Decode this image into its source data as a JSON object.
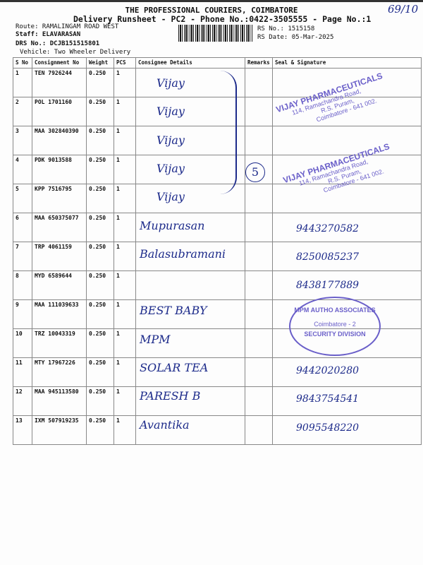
{
  "header": {
    "title": "THE PROFESSIONAL COURIERS, COIMBATORE",
    "subtitle": "Delivery Runsheet - PC2 - Phone No.:0422-3505555 - Page No.:1",
    "route": "Route: RAMALINGAM ROAD WEST",
    "staff": "Staff: ELAVARASAN",
    "drs": "DRS No.: DCJB151515801",
    "vehicle": "Vehicle: Two Wheeler Delivery",
    "rs_no": "RS No.: 1515158",
    "rs_date": "RS Date: 05-Mar-2025",
    "handwritten_note": "69/10"
  },
  "table": {
    "columns": [
      "S No",
      "Consignment No",
      "Weight",
      "PCS",
      "Consignee Details",
      "Remarks",
      "Seal & Signature"
    ],
    "rows": [
      {
        "sno": "1",
        "cn": "TEN 7926244",
        "weight": "0.250",
        "pcs": "1",
        "consignee": "Vijay",
        "sign": ""
      },
      {
        "sno": "2",
        "cn": "POL 1701160",
        "weight": "0.250",
        "pcs": "1",
        "consignee": "Vijay",
        "sign": ""
      },
      {
        "sno": "3",
        "cn": "MAA 302840390",
        "weight": "0.250",
        "pcs": "1",
        "consignee": "Vijay",
        "sign": ""
      },
      {
        "sno": "4",
        "cn": "PDK 9013588",
        "weight": "0.250",
        "pcs": "1",
        "consignee": "Vijay",
        "sign": ""
      },
      {
        "sno": "5",
        "cn": "KPP 7516795",
        "weight": "0.250",
        "pcs": "1",
        "consignee": "Vijay",
        "sign": ""
      },
      {
        "sno": "6",
        "cn": "MAA 650375077",
        "weight": "0.250",
        "pcs": "1",
        "consignee": "Mupurasan",
        "sign": "9443270582"
      },
      {
        "sno": "7",
        "cn": "TRP 4061159",
        "weight": "0.250",
        "pcs": "1",
        "consignee": "Balasubramani",
        "sign": "8250085237"
      },
      {
        "sno": "8",
        "cn": "MYD 6589644",
        "weight": "0.250",
        "pcs": "1",
        "consignee": "",
        "sign": "8438177889"
      },
      {
        "sno": "9",
        "cn": "MAA 111039633",
        "weight": "0.250",
        "pcs": "1",
        "consignee": "BEST BABY",
        "sign": ""
      },
      {
        "sno": "10",
        "cn": "TRZ 10043319",
        "weight": "0.250",
        "pcs": "1",
        "consignee": "MPM",
        "sign": ""
      },
      {
        "sno": "11",
        "cn": "MTY 17967226",
        "weight": "0.250",
        "pcs": "1",
        "consignee": "SOLAR TEA",
        "sign": "9442020280"
      },
      {
        "sno": "12",
        "cn": "MAA 945113580",
        "weight": "0.250",
        "pcs": "1",
        "consignee": "PARESH B",
        "sign": "9843754541"
      },
      {
        "sno": "13",
        "cn": "IXM 507919235",
        "weight": "0.250",
        "pcs": "1",
        "consignee": "Avantika",
        "sign": "9095548220"
      }
    ]
  },
  "annotations": {
    "bracket_count": "5"
  },
  "stamps": {
    "pharma_name": "VIJAY PHARMACEUTICALS",
    "pharma_addr1": "114, Ramachandra Road,",
    "pharma_addr2": "R.S. Puram,",
    "pharma_addr3": "Coimbatore - 641 002.",
    "round_top": "MPM AUTHO ASSOCIATES",
    "round_mid": "Coimbatore - 2",
    "round_bottom": "SECURITY DIVISION"
  },
  "colors": {
    "ink": "#1c2a8a",
    "stamp": "#6a5fc9"
  }
}
